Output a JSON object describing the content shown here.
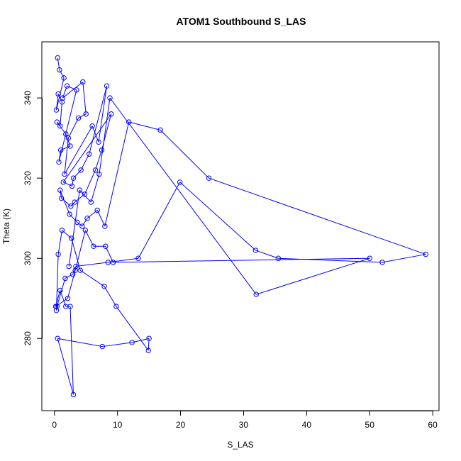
{
  "chart_data": {
    "type": "line",
    "title": "ATOM1 Southbound S_LAS",
    "xlabel": "S_LAS",
    "ylabel": "Theta (K)",
    "xlim": [
      -2,
      61
    ],
    "ylim": [
      262,
      354
    ],
    "x_ticks": [
      0,
      10,
      20,
      30,
      40,
      50,
      60
    ],
    "y_ticks": [
      280,
      300,
      320,
      340
    ],
    "grid": false,
    "legend": "none",
    "colors": {
      "series": "#0000ff",
      "axis": "#000000",
      "background": "#ffffff"
    },
    "series": [
      {
        "marker": "open-circle",
        "x": [
          0.5,
          0.8,
          1.5,
          0.3,
          0.6,
          1.2,
          0.9,
          0.4,
          1.8,
          2.5,
          1.0,
          0.7,
          3.5,
          2.0,
          1.3,
          4.5,
          5.0,
          3.8,
          2.2,
          1.6,
          6.0,
          7.0,
          8.3,
          5.5,
          4.2,
          3.0,
          2.8,
          1.4,
          9.0,
          7.5,
          6.5,
          4.8,
          3.2,
          2.6,
          1.1,
          0.9,
          2.4,
          3.6,
          4.4,
          5.2,
          6.8,
          8.0,
          11.8,
          16.8,
          24.5,
          58.9,
          52.0,
          35.5,
          31.9,
          19.9,
          13.3,
          8.5,
          3.4,
          2.9,
          1.7,
          0.4,
          0.3,
          0.6,
          1.2,
          2.7,
          4.1,
          7.9,
          9.8,
          14.9,
          15.0,
          12.3,
          7.6,
          0.5,
          3.0,
          2.5,
          1.8,
          0.9,
          0.2,
          2.1,
          3.3,
          4.9,
          6.2,
          8.1,
          9.3,
          50.0,
          32.0,
          8.8,
          7.1,
          5.8,
          4.0,
          2.3
        ],
        "y": [
          350,
          347,
          345,
          337,
          341,
          339,
          333,
          334,
          331,
          328,
          327,
          324,
          342,
          343,
          340,
          344,
          336,
          335,
          330,
          321,
          333,
          329,
          343,
          326,
          322,
          320,
          318,
          319,
          336,
          327,
          322,
          316,
          314,
          313,
          315,
          317,
          311,
          309,
          308,
          310,
          312,
          308,
          334,
          332,
          320,
          301,
          299,
          300,
          302,
          319,
          300,
          299,
          298,
          296,
          295,
          288,
          287,
          301,
          307,
          305,
          297,
          293,
          288,
          277,
          280,
          279,
          278,
          280,
          266,
          288,
          288,
          292,
          288,
          290,
          297,
          307,
          303,
          303,
          299,
          300,
          291,
          340,
          321,
          314,
          317,
          298
        ]
      }
    ]
  }
}
